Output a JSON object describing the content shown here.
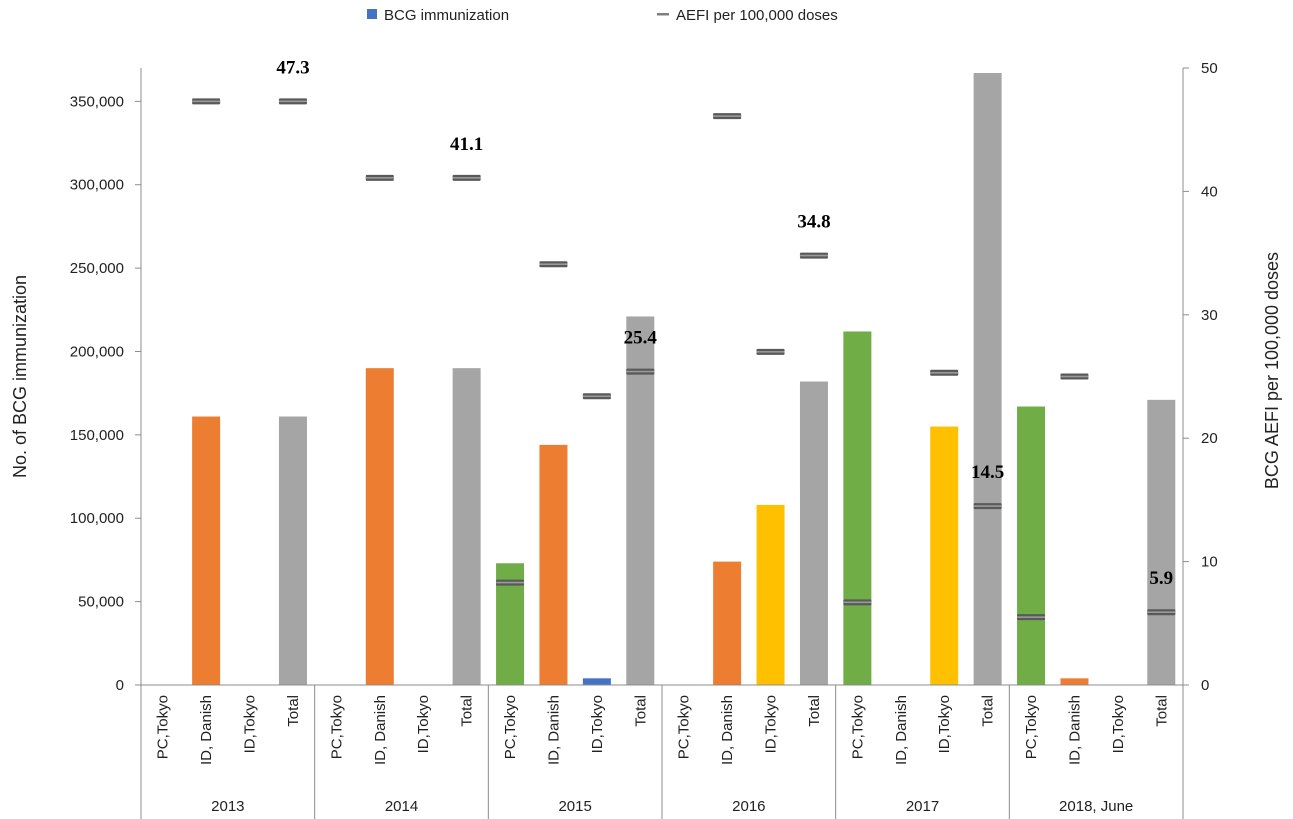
{
  "chart_data": {
    "type": "bar",
    "legend": {
      "position": "top",
      "items": [
        {
          "label": "BCG immunization",
          "color": "#4472c4",
          "marker": "square"
        },
        {
          "label": "AEFI per 100,000 doses",
          "color": "#7f7f7f",
          "marker": "dash"
        }
      ]
    },
    "y_left": {
      "label": "No. of BCG immunization",
      "min": 0,
      "max": 370000,
      "ticks": [
        0,
        50000,
        100000,
        150000,
        200000,
        250000,
        300000,
        350000
      ],
      "tick_labels": [
        "0",
        "50,000",
        "100,000",
        "150,000",
        "200,000",
        "250,000",
        "300,000",
        "350,000"
      ]
    },
    "y_right": {
      "label": "BCG  AEFI per 100,000 doses",
      "min": 0,
      "max": 50,
      "ticks": [
        0,
        10,
        20,
        30,
        40,
        50
      ],
      "tick_labels": [
        "0",
        "10",
        "20",
        "30",
        "40",
        "50"
      ]
    },
    "colors": {
      "PC,Tokyo": "#70ad47",
      "ID, Danish": "#ed7d31",
      "ID,Tokyo": "#ffc000",
      "Total": "#a5a5a5",
      "ID,Tokyo 2015": "#4472c4",
      "aefi_marker": "#595959"
    },
    "groups": [
      {
        "year": "2013",
        "bars": [
          {
            "category": "PC,Tokyo",
            "value": 0,
            "aefi": null
          },
          {
            "category": "ID, Danish",
            "value": 161000,
            "aefi": 47.3
          },
          {
            "category": "ID,Tokyo",
            "value": 0,
            "aefi": null
          },
          {
            "category": "Total",
            "value": 161000,
            "aefi": 47.3,
            "label": "47.3"
          }
        ]
      },
      {
        "year": "2014",
        "bars": [
          {
            "category": "PC,Tokyo",
            "value": 0,
            "aefi": null
          },
          {
            "category": "ID, Danish",
            "value": 190000,
            "aefi": 41.1
          },
          {
            "category": "ID,Tokyo",
            "value": 0,
            "aefi": null
          },
          {
            "category": "Total",
            "value": 190000,
            "aefi": 41.1,
            "label": "41.1"
          }
        ]
      },
      {
        "year": "2015",
        "bars": [
          {
            "category": "PC,Tokyo",
            "value": 73000,
            "aefi": 8.3
          },
          {
            "category": "ID, Danish",
            "value": 144000,
            "aefi": 34.1
          },
          {
            "category": "ID,Tokyo",
            "value": 4000,
            "aefi": 23.4,
            "color": "#4472c4"
          },
          {
            "category": "Total",
            "value": 221000,
            "aefi": 25.4,
            "label": "25.4"
          }
        ]
      },
      {
        "year": "2016",
        "bars": [
          {
            "category": "PC,Tokyo",
            "value": 0,
            "aefi": null
          },
          {
            "category": "ID, Danish",
            "value": 74000,
            "aefi": 46.1
          },
          {
            "category": "ID,Tokyo",
            "value": 108000,
            "aefi": 27.0
          },
          {
            "category": "Total",
            "value": 182000,
            "aefi": 34.8,
            "label": "34.8"
          }
        ]
      },
      {
        "year": "2017",
        "bars": [
          {
            "category": "PC,Tokyo",
            "value": 212000,
            "aefi": 6.7
          },
          {
            "category": "ID, Danish",
            "value": 0,
            "aefi": null
          },
          {
            "category": "ID,Tokyo",
            "value": 155000,
            "aefi": 25.3
          },
          {
            "category": "Total",
            "value": 367000,
            "aefi": 14.5,
            "label": "14.5"
          }
        ]
      },
      {
        "year": "2018, June",
        "bars": [
          {
            "category": "PC,Tokyo",
            "value": 167000,
            "aefi": 5.5
          },
          {
            "category": "ID, Danish",
            "value": 4000,
            "aefi": 25.0
          },
          {
            "category": "ID,Tokyo",
            "value": 0,
            "aefi": null
          },
          {
            "category": "Total",
            "value": 171000,
            "aefi": 5.9,
            "label": "5.9"
          }
        ]
      }
    ]
  }
}
